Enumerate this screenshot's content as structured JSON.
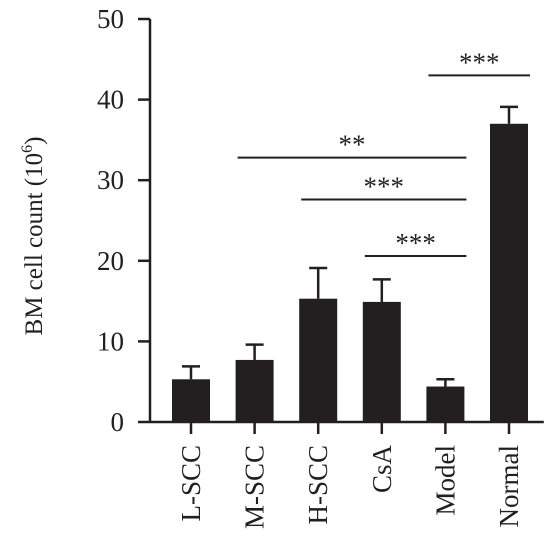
{
  "chart_data": {
    "type": "bar",
    "title": "",
    "xlabel": "",
    "ylabel": "BM cell count (10",
    "ylabel_superscript": "6",
    "ylabel_close": ")",
    "ylim": [
      0,
      50
    ],
    "yticks": [
      "0",
      "10",
      "20",
      "30",
      "40",
      "50"
    ],
    "ytick_values": [
      0,
      10,
      20,
      30,
      40,
      50
    ],
    "categories": [
      "L-SCC",
      "M-SCC",
      "H-SCC",
      "CsA",
      "Model",
      "Normal"
    ],
    "values": [
      5.3,
      7.7,
      15.3,
      14.9,
      4.4,
      37.0
    ],
    "errors": [
      1.6,
      1.9,
      3.8,
      2.8,
      0.9,
      2.1
    ],
    "bar_color": "#231f20",
    "significance": [
      {
        "from": "M-SCC",
        "to": "Model",
        "y": 32.8,
        "label": "**"
      },
      {
        "from": "H-SCC",
        "to": "Model",
        "y": 27.6,
        "label": "***"
      },
      {
        "from": "CsA",
        "to": "Model",
        "y": 20.6,
        "label": "***"
      },
      {
        "from": "Model",
        "to": "Normal",
        "y": 43.0,
        "label": "***"
      }
    ]
  }
}
